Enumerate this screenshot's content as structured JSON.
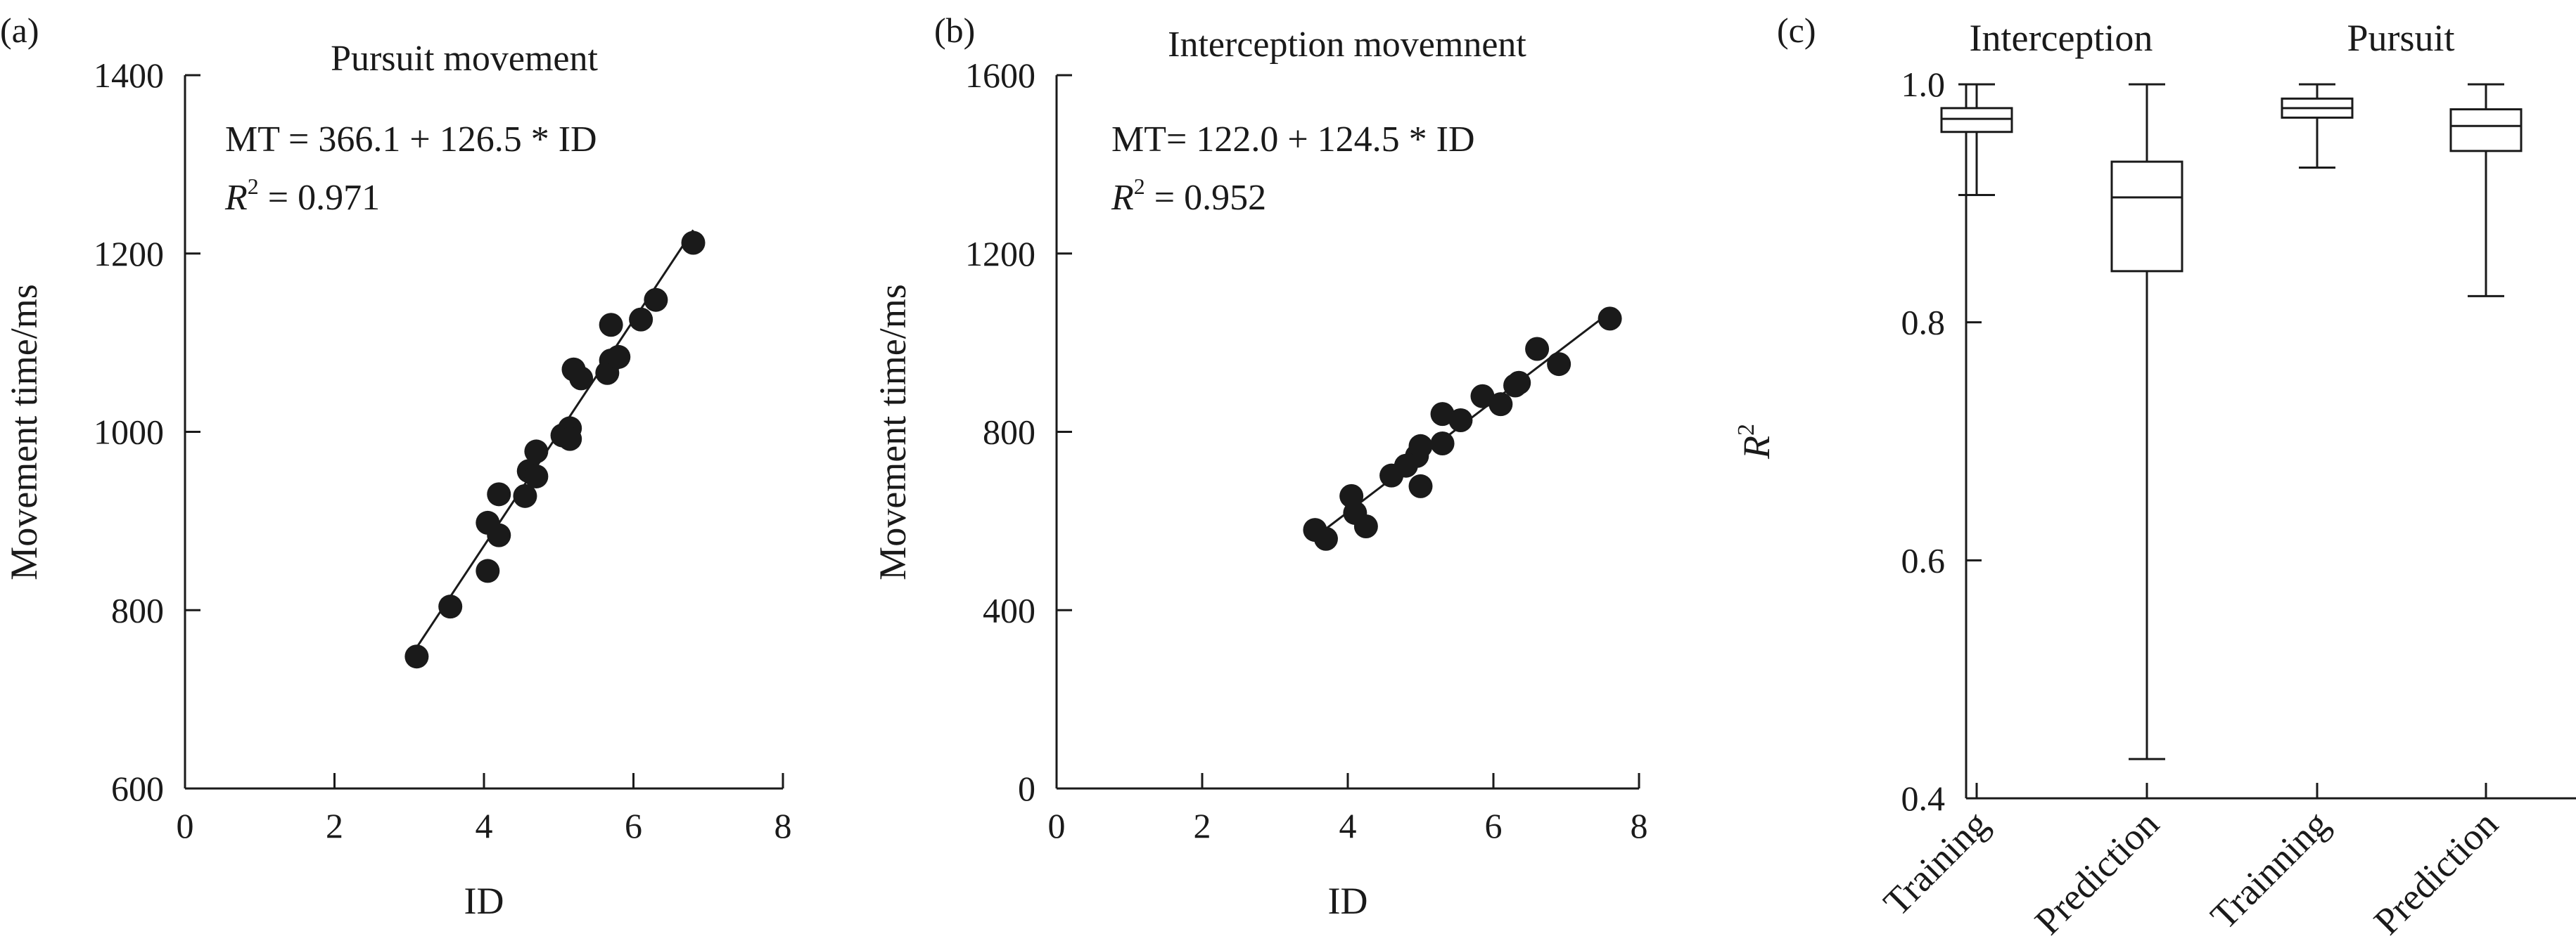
{
  "chart_data": [
    {
      "type": "scatter",
      "panel_label": "(a)",
      "title": "Pursuit movement",
      "xlabel": "ID",
      "ylabel": "Movement time/ms",
      "xlim": [
        0,
        8
      ],
      "ylim": [
        600,
        1400
      ],
      "xticks": [
        "0",
        "2",
        "4",
        "6",
        "8"
      ],
      "yticks": [
        "600",
        "800",
        "1000",
        "1200",
        "1400"
      ],
      "equation": "MT = 366.1 + 126.5 * ID",
      "r2_label": "R",
      "r2_sup": "2",
      "r2_value": " = 0.971",
      "fit": {
        "intercept": 366.1,
        "slope": 126.5,
        "x_range": [
          3.05,
          6.8
        ]
      },
      "series": [
        {
          "points": [
            [
              3.1,
              748
            ],
            [
              3.55,
              804
            ],
            [
              4.05,
              844
            ],
            [
              4.05,
              898
            ],
            [
              4.2,
              930
            ],
            [
              4.2,
              884
            ],
            [
              4.55,
              928
            ],
            [
              4.6,
              956
            ],
            [
              4.7,
              950
            ],
            [
              4.7,
              978
            ],
            [
              5.05,
              996
            ],
            [
              5.15,
              1004
            ],
            [
              5.15,
              992
            ],
            [
              5.2,
              1070
            ],
            [
              5.3,
              1060
            ],
            [
              5.65,
              1066
            ],
            [
              5.7,
              1080
            ],
            [
              5.8,
              1084
            ],
            [
              5.7,
              1120
            ],
            [
              6.1,
              1126
            ],
            [
              6.3,
              1148
            ],
            [
              6.8,
              1212
            ]
          ]
        }
      ]
    },
    {
      "type": "scatter",
      "panel_label": "(b)",
      "title": "Interception movemnent",
      "xlabel": "ID",
      "ylabel": "Movement time/ms",
      "xlim": [
        0,
        8
      ],
      "ylim": [
        0,
        1600
      ],
      "xticks": [
        "0",
        "2",
        "4",
        "6",
        "8"
      ],
      "yticks": [
        "0",
        "400",
        "800",
        "1200",
        "1600"
      ],
      "equation": "MT= 122.0 + 124.5 * ID",
      "r2_label": "R",
      "r2_sup": "2",
      "r2_value": " = 0.952",
      "fit": {
        "intercept": 122.0,
        "slope": 124.5,
        "x_range": [
          3.55,
          7.6
        ]
      },
      "series": [
        {
          "points": [
            [
              3.55,
              580
            ],
            [
              3.7,
              560
            ],
            [
              4.05,
              656
            ],
            [
              4.1,
              618
            ],
            [
              4.25,
              588
            ],
            [
              4.6,
              702
            ],
            [
              4.8,
              724
            ],
            [
              4.95,
              746
            ],
            [
              5.0,
              768
            ],
            [
              5.0,
              678
            ],
            [
              5.3,
              774
            ],
            [
              5.3,
              840
            ],
            [
              5.55,
              826
            ],
            [
              5.85,
              880
            ],
            [
              6.1,
              862
            ],
            [
              6.3,
              904
            ],
            [
              6.35,
              910
            ],
            [
              6.6,
              986
            ],
            [
              6.9,
              952
            ],
            [
              7.6,
              1054
            ]
          ]
        }
      ]
    },
    {
      "type": "box",
      "panel_label": "(c)",
      "ylabel": "R",
      "ylabel_sup": "2",
      "ylim": [
        0.4,
        1.0
      ],
      "yticks": [
        "0.4",
        "0.6",
        "0.8",
        "1.0"
      ],
      "groups": [
        "Interception",
        "Pursuit"
      ],
      "categories": [
        "Training",
        "Prediction",
        "Trainning",
        "Prediction"
      ],
      "boxes": [
        {
          "group": "Interception",
          "min": 0.907,
          "q1": 0.96,
          "median": 0.971,
          "q3": 0.98,
          "max": 1.0
        },
        {
          "group": "Interception",
          "min": 0.433,
          "q1": 0.843,
          "median": 0.905,
          "q3": 0.935,
          "max": 1.0
        },
        {
          "group": "Pursuit",
          "min": 0.93,
          "q1": 0.972,
          "median": 0.98,
          "q3": 0.988,
          "max": 1.0
        },
        {
          "group": "Pursuit",
          "min": 0.822,
          "q1": 0.944,
          "median": 0.965,
          "q3": 0.979,
          "max": 1.0
        }
      ]
    }
  ]
}
